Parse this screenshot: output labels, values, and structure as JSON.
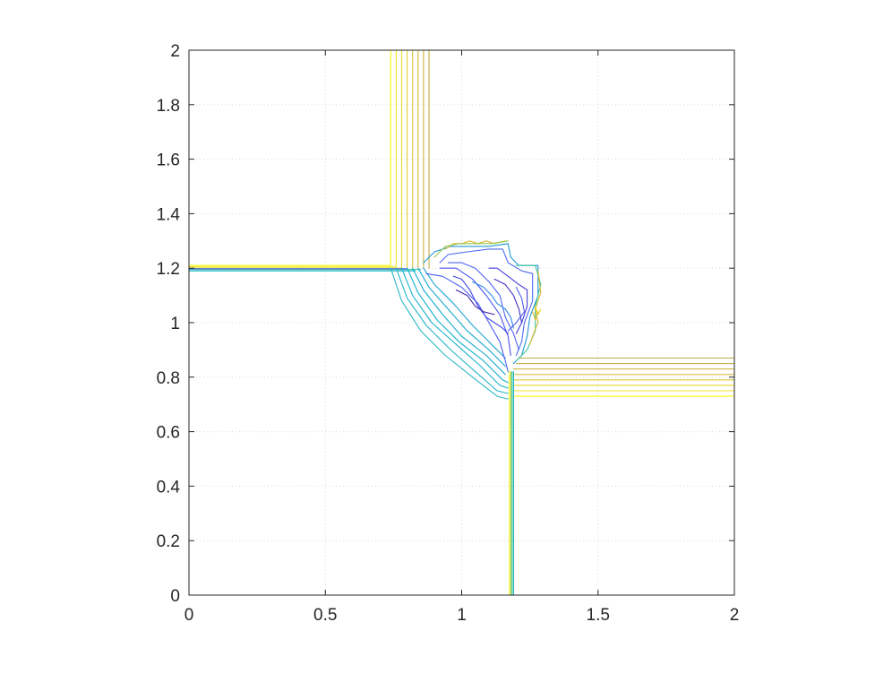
{
  "chart_data": {
    "type": "contour",
    "title": "",
    "xlabel": "",
    "ylabel": "",
    "xlim": [
      0,
      2
    ],
    "ylim": [
      0,
      2
    ],
    "grid": true,
    "x_ticks": [
      0,
      0.5,
      1,
      1.5,
      2
    ],
    "y_ticks": [
      0,
      0.2,
      0.4,
      0.6,
      0.8,
      1,
      1.2,
      1.4,
      1.6,
      1.8,
      2
    ],
    "x_tick_labels": [
      "0",
      "0.5",
      "1",
      "1.5",
      "2"
    ],
    "y_tick_labels": [
      "0",
      "0.2",
      "0.4",
      "0.6",
      "0.8",
      "1",
      "1.2",
      "1.4",
      "1.6",
      "1.8",
      "2"
    ],
    "colormap": [
      "#3e26a8",
      "#4a5cf0",
      "#2f8ae6",
      "#12b3ca",
      "#3fc49a",
      "#99c84c",
      "#d8ba30",
      "#f0d41a",
      "#f9fb0e"
    ],
    "contours": [
      {
        "level": 0.05,
        "color": "#f9fb0e",
        "points": [
          [
            0.74,
            2.0
          ],
          [
            0.74,
            1.21
          ],
          [
            0.0,
            1.21
          ]
        ]
      },
      {
        "level": 0.1,
        "color": "#f3e81f",
        "points": [
          [
            0.76,
            2.0
          ],
          [
            0.76,
            1.205
          ],
          [
            0.0,
            1.205
          ]
        ]
      },
      {
        "level": 0.15,
        "color": "#eddb2c",
        "points": [
          [
            0.78,
            2.0
          ],
          [
            0.78,
            1.2
          ],
          [
            0.0,
            1.2
          ]
        ]
      },
      {
        "level": 0.2,
        "color": "#e5cd35",
        "points": [
          [
            0.8,
            2.0
          ],
          [
            0.8,
            1.2
          ]
        ]
      },
      {
        "level": 0.25,
        "color": "#dcc139",
        "points": [
          [
            0.82,
            2.0
          ],
          [
            0.82,
            1.2
          ]
        ]
      },
      {
        "level": 0.3,
        "color": "#d3b63c",
        "points": [
          [
            0.84,
            2.0
          ],
          [
            0.84,
            1.2
          ]
        ]
      },
      {
        "level": 0.35,
        "color": "#cbb040",
        "points": [
          [
            0.86,
            2.0
          ],
          [
            0.86,
            1.2
          ]
        ]
      },
      {
        "level": 0.4,
        "color": "#c2ab45",
        "points": [
          [
            0.88,
            2.0
          ],
          [
            0.88,
            1.2
          ]
        ]
      },
      {
        "level": 0.45,
        "color": "#f9fb0e",
        "points": [
          [
            2.0,
            0.73
          ],
          [
            1.19,
            0.73
          ],
          [
            1.19,
            0.0
          ]
        ]
      },
      {
        "level": 0.5,
        "color": "#f1e124",
        "points": [
          [
            2.0,
            0.75
          ],
          [
            1.19,
            0.75
          ]
        ]
      },
      {
        "level": 0.55,
        "color": "#e9d42e",
        "points": [
          [
            2.0,
            0.77
          ],
          [
            1.19,
            0.77
          ]
        ]
      },
      {
        "level": 0.6,
        "color": "#e0c736",
        "points": [
          [
            2.0,
            0.79
          ],
          [
            1.19,
            0.79
          ]
        ]
      },
      {
        "level": 0.65,
        "color": "#d7bb3a",
        "points": [
          [
            2.0,
            0.81
          ],
          [
            1.19,
            0.81
          ]
        ]
      },
      {
        "level": 0.7,
        "color": "#ceb23e",
        "points": [
          [
            2.0,
            0.83
          ],
          [
            1.19,
            0.83
          ]
        ]
      },
      {
        "level": 0.75,
        "color": "#c5ad43",
        "points": [
          [
            2.0,
            0.85
          ],
          [
            1.2,
            0.85
          ]
        ]
      },
      {
        "level": 0.8,
        "color": "#bca848",
        "points": [
          [
            2.0,
            0.87
          ],
          [
            1.21,
            0.87
          ]
        ]
      },
      {
        "level": 0.85,
        "color": "#f9fb0e",
        "points": [
          [
            1.175,
            0.0
          ],
          [
            1.175,
            0.82
          ]
        ]
      },
      {
        "level": 0.9,
        "color": "#99c84c",
        "points": [
          [
            1.18,
            0.0
          ],
          [
            1.18,
            0.82
          ]
        ]
      },
      {
        "level": 0.95,
        "color": "#3fc49a",
        "points": [
          [
            1.185,
            0.0
          ],
          [
            1.185,
            0.82
          ]
        ]
      },
      {
        "level": 1.0,
        "color": "#12b3ca",
        "points": [
          [
            1.19,
            0.0
          ],
          [
            1.19,
            0.82
          ]
        ]
      },
      {
        "level": 1.05,
        "color": "#3fc49a",
        "points": [
          [
            0.0,
            1.195
          ],
          [
            0.85,
            1.195
          ]
        ]
      },
      {
        "level": 1.1,
        "color": "#12b3ca",
        "points": [
          [
            0.0,
            1.19
          ],
          [
            0.83,
            1.19
          ]
        ]
      },
      {
        "level": 1.15,
        "color": "#4a5cf0",
        "points": [
          [
            0.0,
            1.198
          ],
          [
            0.8,
            1.198
          ]
        ]
      },
      {
        "level": 1.2,
        "color": "#2bb7c5",
        "points": [
          [
            0.74,
            1.2
          ],
          [
            0.78,
            1.08
          ],
          [
            0.85,
            0.97
          ],
          [
            0.94,
            0.88
          ],
          [
            1.04,
            0.8
          ],
          [
            1.13,
            0.73
          ],
          [
            1.17,
            0.72
          ]
        ]
      },
      {
        "level": 1.25,
        "color": "#21b5c8",
        "points": [
          [
            0.76,
            1.2
          ],
          [
            0.8,
            1.09
          ],
          [
            0.87,
            0.99
          ],
          [
            0.96,
            0.9
          ],
          [
            1.05,
            0.82
          ],
          [
            1.13,
            0.75
          ],
          [
            1.17,
            0.74
          ]
        ]
      },
      {
        "level": 1.3,
        "color": "#18b3cb",
        "points": [
          [
            0.78,
            1.2
          ],
          [
            0.82,
            1.1
          ],
          [
            0.89,
            1.0
          ],
          [
            0.98,
            0.92
          ],
          [
            1.07,
            0.84
          ],
          [
            1.14,
            0.77
          ],
          [
            1.17,
            0.76
          ]
        ]
      },
      {
        "level": 1.35,
        "color": "#12b0ce",
        "points": [
          [
            0.8,
            1.2
          ],
          [
            0.84,
            1.11
          ],
          [
            0.91,
            1.01
          ],
          [
            0.99,
            0.93
          ],
          [
            1.08,
            0.86
          ],
          [
            1.15,
            0.79
          ],
          [
            1.17,
            0.78
          ]
        ]
      },
      {
        "level": 1.4,
        "color": "#11accf",
        "points": [
          [
            0.82,
            1.2
          ],
          [
            0.86,
            1.12
          ],
          [
            0.93,
            1.03
          ],
          [
            1.0,
            0.95
          ],
          [
            1.09,
            0.88
          ],
          [
            1.16,
            0.81
          ]
        ]
      },
      {
        "level": 1.45,
        "color": "#15a8d1",
        "points": [
          [
            0.84,
            1.2
          ],
          [
            0.88,
            1.13
          ],
          [
            0.95,
            1.05
          ],
          [
            1.02,
            0.97
          ],
          [
            1.1,
            0.9
          ],
          [
            1.16,
            0.84
          ]
        ]
      },
      {
        "level": 1.5,
        "color": "#1aa3d3",
        "points": [
          [
            0.86,
            1.2
          ],
          [
            0.9,
            1.14
          ],
          [
            0.97,
            1.07
          ],
          [
            1.04,
            0.99
          ],
          [
            1.11,
            0.92
          ],
          [
            1.16,
            0.87
          ]
        ]
      },
      {
        "level": 1.55,
        "color": "#2196d8",
        "points": [
          [
            0.86,
            1.22
          ],
          [
            0.9,
            1.26
          ],
          [
            0.96,
            1.28
          ],
          [
            1.03,
            1.28
          ],
          [
            1.1,
            1.28
          ],
          [
            1.17,
            1.29
          ],
          [
            1.18,
            1.24
          ],
          [
            1.21,
            1.21
          ],
          [
            1.28,
            1.21
          ],
          [
            1.28,
            1.1
          ],
          [
            1.25,
            1.02
          ],
          [
            1.24,
            0.95
          ],
          [
            1.22,
            0.88
          ],
          [
            1.19,
            0.85
          ]
        ]
      },
      {
        "level": 1.6,
        "color": "#4e6bf2",
        "points": [
          [
            0.92,
            1.22
          ],
          [
            0.95,
            1.25
          ],
          [
            1.02,
            1.26
          ],
          [
            1.1,
            1.27
          ],
          [
            1.15,
            1.27
          ],
          [
            1.17,
            1.22
          ],
          [
            1.22,
            1.19
          ],
          [
            1.26,
            1.18
          ],
          [
            1.26,
            1.08
          ],
          [
            1.23,
            1.0
          ],
          [
            1.22,
            0.93
          ],
          [
            1.2,
            0.88
          ]
        ]
      },
      {
        "level": 1.65,
        "color": "#4d5ff1",
        "points": [
          [
            0.87,
            1.18
          ],
          [
            0.93,
            1.17
          ],
          [
            1.0,
            1.13
          ],
          [
            1.06,
            1.07
          ],
          [
            1.1,
            1.0
          ],
          [
            1.14,
            0.93
          ],
          [
            1.16,
            0.86
          ],
          [
            1.17,
            0.82
          ]
        ]
      },
      {
        "level": 1.7,
        "color": "#4a55ef",
        "points": [
          [
            0.92,
            1.2
          ],
          [
            0.98,
            1.2
          ],
          [
            1.04,
            1.16
          ],
          [
            1.09,
            1.1
          ],
          [
            1.14,
            1.03
          ],
          [
            1.17,
            0.95
          ],
          [
            1.18,
            0.88
          ]
        ]
      },
      {
        "level": 1.75,
        "color": "#4f66f2",
        "points": [
          [
            0.95,
            1.22
          ],
          [
            1.0,
            1.22
          ],
          [
            1.05,
            1.2
          ],
          [
            1.1,
            1.15
          ],
          [
            1.14,
            1.1
          ],
          [
            1.16,
            1.02
          ],
          [
            1.19,
            0.96
          ],
          [
            1.21,
            0.9
          ]
        ]
      },
      {
        "level": 1.8,
        "color": "#3f46e6",
        "points": [
          [
            0.97,
            1.17
          ],
          [
            1.0,
            1.16
          ],
          [
            1.03,
            1.12
          ],
          [
            1.06,
            1.06
          ],
          [
            1.09,
            1.02
          ],
          [
            1.12,
            1.0
          ],
          [
            1.15,
            0.98
          ],
          [
            1.17,
            0.96
          ]
        ]
      },
      {
        "level": 1.85,
        "color": "#2d87e5",
        "points": [
          [
            1.04,
            1.15
          ],
          [
            1.08,
            1.13
          ],
          [
            1.11,
            1.1
          ],
          [
            1.13,
            1.07
          ],
          [
            1.16,
            1.05
          ],
          [
            1.18,
            1.02
          ],
          [
            1.19,
            0.98
          ]
        ]
      },
      {
        "level": 1.9,
        "color": "#453ad8",
        "points": [
          [
            1.1,
            1.2
          ],
          [
            1.13,
            1.2
          ],
          [
            1.17,
            1.17
          ],
          [
            1.21,
            1.14
          ],
          [
            1.24,
            1.12
          ],
          [
            1.24,
            1.06
          ],
          [
            1.22,
            1.0
          ],
          [
            1.2,
            0.96
          ]
        ]
      },
      {
        "level": 1.95,
        "color": "#3c2fbf",
        "points": [
          [
            1.12,
            1.16
          ],
          [
            1.16,
            1.14
          ],
          [
            1.19,
            1.1
          ],
          [
            1.21,
            1.05
          ],
          [
            1.22,
            1.0
          ]
        ]
      },
      {
        "level": 2.0,
        "color": "#3e26a8",
        "points": [
          [
            0.98,
            1.12
          ],
          [
            1.02,
            1.1
          ],
          [
            1.05,
            1.06
          ],
          [
            1.08,
            1.04
          ],
          [
            1.12,
            1.03
          ]
        ]
      },
      {
        "level": 2.05,
        "color": "#4c61f1",
        "points": [
          [
            1.17,
            0.97
          ],
          [
            1.2,
            1.0
          ],
          [
            1.23,
            1.04
          ],
          [
            1.22,
            1.09
          ],
          [
            1.2,
            1.13
          ]
        ]
      },
      {
        "level": 2.1,
        "color": "#d8ba30",
        "points": [
          [
            0.94,
            1.27
          ],
          [
            0.97,
            1.29
          ],
          [
            1.0,
            1.29
          ],
          [
            1.03,
            1.3
          ],
          [
            1.06,
            1.29
          ],
          [
            1.09,
            1.3
          ],
          [
            1.12,
            1.29
          ],
          [
            1.16,
            1.3
          ]
        ]
      },
      {
        "level": 2.15,
        "color": "#99c84c",
        "points": [
          [
            0.9,
            1.24
          ],
          [
            0.94,
            1.28
          ],
          [
            0.99,
            1.29
          ],
          [
            1.05,
            1.29
          ],
          [
            1.11,
            1.29
          ],
          [
            1.17,
            1.3
          ]
        ]
      },
      {
        "level": 2.2,
        "color": "#3fc49a",
        "points": [
          [
            1.2,
            1.21
          ],
          [
            1.27,
            1.21
          ],
          [
            1.29,
            1.14
          ],
          [
            1.27,
            1.06
          ],
          [
            1.27,
            0.97
          ],
          [
            1.24,
            0.9
          ],
          [
            1.2,
            0.86
          ]
        ]
      },
      {
        "level": 2.25,
        "color": "#d8ba30",
        "points": [
          [
            1.28,
            1.19
          ],
          [
            1.29,
            1.11
          ],
          [
            1.27,
            1.05
          ],
          [
            1.28,
            1.0
          ],
          [
            1.26,
            0.95
          ],
          [
            1.25,
            0.92
          ]
        ]
      },
      {
        "level": 2.3,
        "color": "#f0d41a",
        "points": [
          [
            1.27,
            1.06
          ],
          [
            1.28,
            1.03
          ],
          [
            1.29,
            1.05
          ]
        ]
      },
      {
        "level": 2.35,
        "color": "#d8ba30",
        "points": [
          [
            1.26,
            1.04
          ],
          [
            1.27,
            1.01
          ],
          [
            1.28,
            1.04
          ]
        ]
      }
    ]
  }
}
